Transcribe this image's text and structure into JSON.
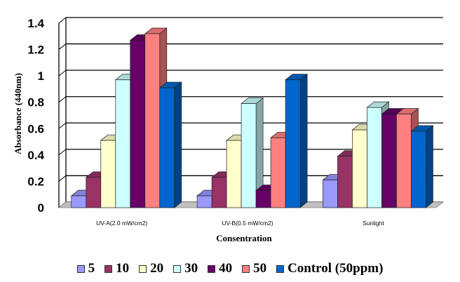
{
  "chart_data": {
    "type": "bar",
    "title": "",
    "xlabel": "Consentration",
    "ylabel": "Absorbance (440nm)",
    "ylim": [
      0,
      1.4
    ],
    "yticks": [
      "0",
      "0.2",
      "0.4",
      "0.6",
      "0.8",
      "1",
      "1.2",
      "1.4"
    ],
    "categories": [
      "UV-A(2.0 mW/cm2)",
      "UV-B(0.5 mW/cm2)",
      "Sunlight"
    ],
    "grid": true,
    "legend_position": "bottom",
    "series": [
      {
        "name": "5",
        "color": "#9999ff",
        "values": [
          0.09,
          0.09,
          0.21
        ]
      },
      {
        "name": "10",
        "color": "#993366",
        "values": [
          0.23,
          0.23,
          0.39
        ]
      },
      {
        "name": "20",
        "color": "#ffffcc",
        "values": [
          0.51,
          0.51,
          0.59
        ]
      },
      {
        "name": "30",
        "color": "#ccffff",
        "values": [
          0.97,
          0.79,
          0.76
        ]
      },
      {
        "name": "40",
        "color": "#660066",
        "values": [
          1.27,
          0.13,
          0.71
        ]
      },
      {
        "name": "50",
        "color": "#ff8080",
        "values": [
          1.32,
          0.53,
          0.71
        ]
      },
      {
        "name": "Control (50ppm)",
        "color": "#0066cc",
        "values": [
          0.91,
          0.97,
          0.58
        ]
      }
    ]
  }
}
